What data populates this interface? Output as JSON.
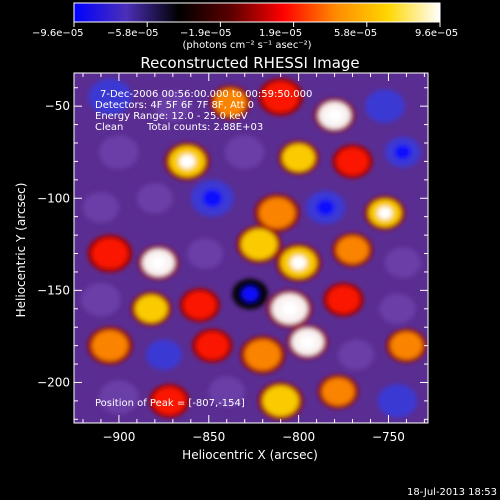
{
  "colorbar": {
    "tick_labels": [
      "−9.6e−05",
      "−5.8e−05",
      "−1.9e−05",
      "1.9e−05",
      "5.8e−05",
      "9.6e−05"
    ],
    "unit_label": "(photons cm⁻² s⁻¹ asec⁻²)",
    "colors": [
      "#0000ff",
      "#4c2fb8",
      "#000000",
      "#5a0000",
      "#ff0000",
      "#ff8a00",
      "#ffd600",
      "#ffffff"
    ]
  },
  "chart_data": {
    "type": "heatmap",
    "title": "Reconstructed RHESSI Image",
    "xlabel": "Heliocentric X (arcsec)",
    "ylabel": "Heliocentric Y (arcsec)",
    "xlim": [
      -925,
      -728
    ],
    "ylim": [
      -222,
      -32
    ],
    "x_ticks": [
      -900,
      -850,
      -800,
      -750
    ],
    "y_ticks": [
      -50,
      -100,
      -150,
      -200
    ],
    "x_tick_labels": [
      "−900",
      "−850",
      "−800",
      "−750"
    ],
    "y_tick_labels": [
      "−50",
      "−100",
      "−150",
      "−200"
    ],
    "value_range": [
      -9.6e-05,
      9.6e-05
    ],
    "blobs": [
      {
        "x": -905,
        "y": -45,
        "v": -0.7,
        "s": 12
      },
      {
        "x": -870,
        "y": -50,
        "v": -0.6,
        "s": 10
      },
      {
        "x": -838,
        "y": -48,
        "v": 0.6,
        "s": 9
      },
      {
        "x": -810,
        "y": -45,
        "v": 0.4,
        "s": 10
      },
      {
        "x": -780,
        "y": -55,
        "v": 0.9,
        "s": 9
      },
      {
        "x": -752,
        "y": -50,
        "v": -0.7,
        "s": 11
      },
      {
        "x": -900,
        "y": -75,
        "v": -0.5,
        "s": 11
      },
      {
        "x": -862,
        "y": -80,
        "v": 0.8,
        "s": 10
      },
      {
        "x": -830,
        "y": -75,
        "v": -0.6,
        "s": 11
      },
      {
        "x": -800,
        "y": -78,
        "v": 0.7,
        "s": 9
      },
      {
        "x": -770,
        "y": -80,
        "v": 0.5,
        "s": 9
      },
      {
        "x": -742,
        "y": -75,
        "v": -0.8,
        "s": 10
      },
      {
        "x": -910,
        "y": -105,
        "v": -0.4,
        "s": 10
      },
      {
        "x": -880,
        "y": -100,
        "v": -0.6,
        "s": 10
      },
      {
        "x": -848,
        "y": -100,
        "v": -0.8,
        "s": 12
      },
      {
        "x": -812,
        "y": -108,
        "v": 0.6,
        "s": 10
      },
      {
        "x": -785,
        "y": -105,
        "v": -0.8,
        "s": 11
      },
      {
        "x": -752,
        "y": -108,
        "v": 0.8,
        "s": 9
      },
      {
        "x": -905,
        "y": -130,
        "v": 0.5,
        "s": 10
      },
      {
        "x": -878,
        "y": -135,
        "v": 0.9,
        "s": 9
      },
      {
        "x": -852,
        "y": -130,
        "v": -0.5,
        "s": 10
      },
      {
        "x": -822,
        "y": -125,
        "v": 0.7,
        "s": 10
      },
      {
        "x": -800,
        "y": -135,
        "v": 0.8,
        "s": 10
      },
      {
        "x": -770,
        "y": -128,
        "v": 0.6,
        "s": 9
      },
      {
        "x": -742,
        "y": -135,
        "v": -0.6,
        "s": 10
      },
      {
        "x": -910,
        "y": -155,
        "v": -0.6,
        "s": 11
      },
      {
        "x": -882,
        "y": -160,
        "v": 0.7,
        "s": 9
      },
      {
        "x": -855,
        "y": -158,
        "v": 0.5,
        "s": 9
      },
      {
        "x": -827,
        "y": -152,
        "v": -1.0,
        "s": 10
      },
      {
        "x": -805,
        "y": -160,
        "v": 0.9,
        "s": 10
      },
      {
        "x": -775,
        "y": -155,
        "v": 0.5,
        "s": 9
      },
      {
        "x": -745,
        "y": -160,
        "v": -0.5,
        "s": 10
      },
      {
        "x": -905,
        "y": -180,
        "v": 0.6,
        "s": 10
      },
      {
        "x": -875,
        "y": -185,
        "v": -0.7,
        "s": 10
      },
      {
        "x": -848,
        "y": -180,
        "v": 0.4,
        "s": 9
      },
      {
        "x": -820,
        "y": -185,
        "v": 0.6,
        "s": 10
      },
      {
        "x": -795,
        "y": -178,
        "v": 0.9,
        "s": 9
      },
      {
        "x": -768,
        "y": -185,
        "v": -0.6,
        "s": 10
      },
      {
        "x": -740,
        "y": -180,
        "v": 0.6,
        "s": 9
      },
      {
        "x": -900,
        "y": -208,
        "v": -0.6,
        "s": 11
      },
      {
        "x": -872,
        "y": -210,
        "v": 0.5,
        "s": 9
      },
      {
        "x": -840,
        "y": -205,
        "v": -0.5,
        "s": 10
      },
      {
        "x": -810,
        "y": -210,
        "v": 0.7,
        "s": 10
      },
      {
        "x": -778,
        "y": -205,
        "v": 0.6,
        "s": 9
      },
      {
        "x": -745,
        "y": -210,
        "v": -0.7,
        "s": 11
      }
    ]
  },
  "annotations": {
    "time_range": "7-Dec-2006 00:56:00.000 to 00:59:50.000",
    "detectors": "Detectors: 4F 5F 6F 7F 8F, Att 0",
    "energy": "Energy Range: 12.0 - 25.0 keV",
    "clean_label": "Clean",
    "total_counts": "Total counts: 2.88E+03",
    "peak": "Position of Peak = [-807,-154]"
  },
  "footer": {
    "timestamp": "18-Jul-2013 18:53"
  }
}
